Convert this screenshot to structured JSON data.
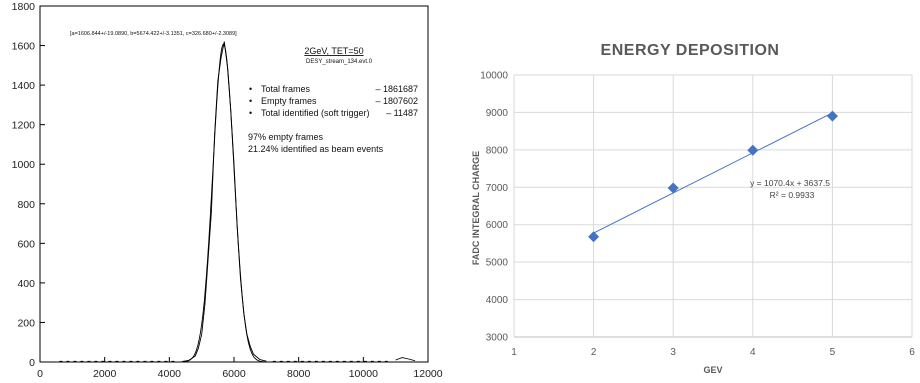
{
  "chart_data": [
    {
      "type": "line",
      "title": "2GeV, TET=50",
      "subtitle": "DESY_stream_134.evt.0",
      "fit_params": "[a=1606.844+/-19.0890, b=5674.422+/-3.1351, c=326.680+/-2.3089]",
      "xlim": [
        0,
        12000
      ],
      "ylim": [
        0,
        1800
      ],
      "xticks": [
        0,
        2000,
        4000,
        6000,
        8000,
        10000,
        12000
      ],
      "yticks": [
        0,
        200,
        400,
        600,
        800,
        1000,
        1200,
        1400,
        1600,
        1800
      ],
      "gaussian": {
        "a": 1606.844,
        "b": 5674.422,
        "c": 326.68
      },
      "histogram": {
        "x": [
          4400,
          4600,
          4800,
          4900,
          5000,
          5100,
          5200,
          5300,
          5400,
          5500,
          5600,
          5700,
          5800,
          5900,
          6000,
          6100,
          6200,
          6300,
          6400,
          6500,
          6600,
          6800,
          7000,
          11000,
          11200,
          11400,
          11600
        ],
        "y": [
          3,
          8,
          30,
          70,
          140,
          290,
          520,
          760,
          1150,
          1420,
          1540,
          1620,
          1490,
          1270,
          1000,
          680,
          420,
          250,
          140,
          80,
          40,
          12,
          4,
          10,
          22,
          15,
          6
        ]
      },
      "legend": {
        "items": [
          {
            "label": "Total frames",
            "value": "– 1861687"
          },
          {
            "label": "Empty frames",
            "value": "– 1807602"
          },
          {
            "label": "Total identified (soft trigger)",
            "value": "– 11487"
          }
        ],
        "notes": [
          "97% empty frames",
          "21.24% identified as beam events"
        ]
      }
    },
    {
      "type": "scatter",
      "title": "ENERGY DEPOSITION",
      "xlabel": "GEV",
      "ylabel": "FADC INTEGRAL CHARGE",
      "xlim": [
        1,
        6
      ],
      "ylim": [
        3000,
        10000
      ],
      "xticks": [
        1,
        2,
        3,
        4,
        5,
        6
      ],
      "yticks": [
        3000,
        4000,
        5000,
        6000,
        7000,
        8000,
        9000,
        10000
      ],
      "x": [
        2,
        3,
        4,
        5
      ],
      "y": [
        5680,
        6980,
        7990,
        8900
      ],
      "trendline": {
        "slope": 1070.4,
        "intercept": 3637.5,
        "x_range": [
          2,
          5
        ]
      },
      "equation": "y = 1070.4x + 3637.5",
      "r2": "R² = 0.9933",
      "marker_color": "#4472c4",
      "line_color": "#4472c4"
    }
  ]
}
